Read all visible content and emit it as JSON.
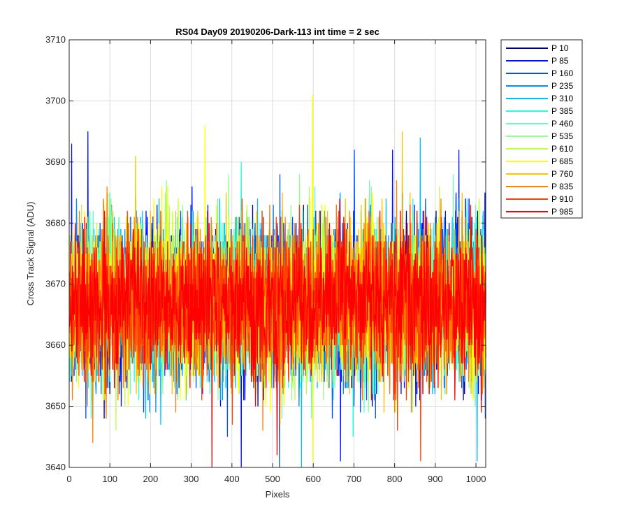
{
  "chart_data": {
    "type": "line",
    "title": "RS04 Day09 20190206-Dark-113 int time = 2 sec",
    "xlabel": "Pixels",
    "ylabel": "Cross Track Signal (ADU)",
    "xlim": [
      0,
      1024
    ],
    "ylim": [
      3640,
      3710
    ],
    "x_ticks": [
      0,
      100,
      200,
      300,
      400,
      500,
      600,
      700,
      800,
      900,
      1000
    ],
    "y_ticks": [
      3640,
      3650,
      3660,
      3670,
      3680,
      3690,
      3700,
      3710
    ],
    "grid": true,
    "legend_position": "outside-top-right",
    "n_points": 1024,
    "noise": {
      "mean": 3667,
      "std": 6.2,
      "min": 3640,
      "max": 3701
    },
    "series": [
      {
        "name": "P 10",
        "color": "#00008f"
      },
      {
        "name": "P 85",
        "color": "#0010ff"
      },
      {
        "name": "P 160",
        "color": "#0050ff"
      },
      {
        "name": "P 235",
        "color": "#0090ff"
      },
      {
        "name": "P 310",
        "color": "#00c0ff"
      },
      {
        "name": "P 385",
        "color": "#20ffdf"
      },
      {
        "name": "P 460",
        "color": "#60ffbf"
      },
      {
        "name": "P 535",
        "color": "#90ff90"
      },
      {
        "name": "P 610",
        "color": "#c0ff40"
      },
      {
        "name": "P 685",
        "color": "#ffff00"
      },
      {
        "name": "P 760",
        "color": "#ffc000"
      },
      {
        "name": "P 835",
        "color": "#ff8000"
      },
      {
        "name": "P 910",
        "color": "#ff4000"
      },
      {
        "name": "P 985",
        "color": "#ff0000"
      }
    ],
    "peaks": [
      {
        "series": "P 685",
        "x": 597,
        "y": 3701
      },
      {
        "series": "P 685",
        "x": 333,
        "y": 3696
      },
      {
        "series": "P 85",
        "x": 45,
        "y": 3695
      },
      {
        "series": "P 760",
        "x": 818,
        "y": 3695
      },
      {
        "series": "P 310",
        "x": 862,
        "y": 3694
      },
      {
        "series": "P 85",
        "x": 5,
        "y": 3693
      },
      {
        "series": "P 160",
        "x": 700,
        "y": 3692
      },
      {
        "series": "P 85",
        "x": 957,
        "y": 3692
      },
      {
        "series": "P 760",
        "x": 162,
        "y": 3691
      }
    ],
    "troughs": [
      {
        "series": "P 985",
        "x": 350,
        "y": 3640
      },
      {
        "series": "P 85",
        "x": 422,
        "y": 3640
      },
      {
        "series": "P 160",
        "x": 516,
        "y": 3640
      },
      {
        "series": "P 310",
        "x": 570,
        "y": 3640
      },
      {
        "series": "P 685",
        "x": 598,
        "y": 3641
      },
      {
        "series": "P 85",
        "x": 666,
        "y": 3641
      },
      {
        "series": "P 910",
        "x": 863,
        "y": 3641
      },
      {
        "series": "P 310",
        "x": 1002,
        "y": 3641
      }
    ]
  }
}
